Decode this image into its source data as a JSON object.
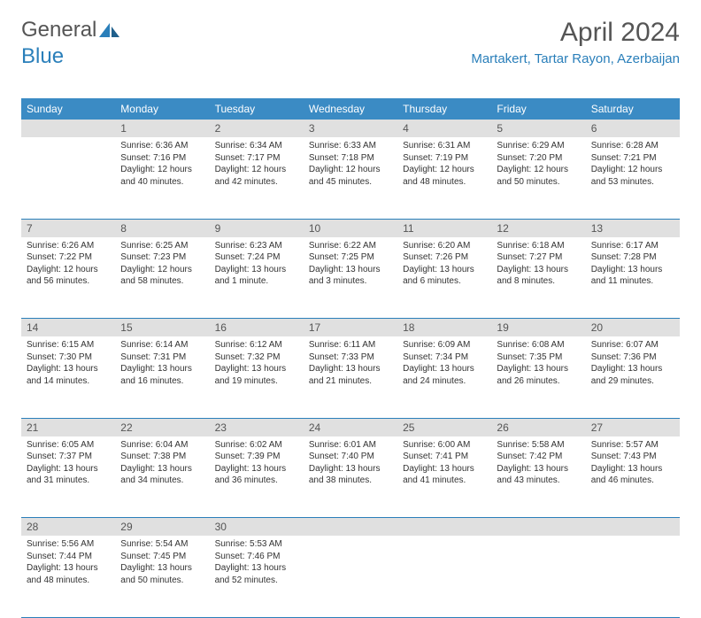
{
  "logo": {
    "text1": "General",
    "text2": "Blue"
  },
  "title": "April 2024",
  "location": "Martakert, Tartar Rayon, Azerbaijan",
  "weekdays": [
    "Sunday",
    "Monday",
    "Tuesday",
    "Wednesday",
    "Thursday",
    "Friday",
    "Saturday"
  ],
  "colors": {
    "header_bg": "#3b8bc4",
    "accent": "#2a7fba",
    "daynum_bg": "#e0e0e0",
    "text": "#333333"
  },
  "weeks": [
    {
      "nums": [
        "",
        "1",
        "2",
        "3",
        "4",
        "5",
        "6"
      ],
      "cells": [
        null,
        {
          "sr": "Sunrise: 6:36 AM",
          "ss": "Sunset: 7:16 PM",
          "d1": "Daylight: 12 hours",
          "d2": "and 40 minutes."
        },
        {
          "sr": "Sunrise: 6:34 AM",
          "ss": "Sunset: 7:17 PM",
          "d1": "Daylight: 12 hours",
          "d2": "and 42 minutes."
        },
        {
          "sr": "Sunrise: 6:33 AM",
          "ss": "Sunset: 7:18 PM",
          "d1": "Daylight: 12 hours",
          "d2": "and 45 minutes."
        },
        {
          "sr": "Sunrise: 6:31 AM",
          "ss": "Sunset: 7:19 PM",
          "d1": "Daylight: 12 hours",
          "d2": "and 48 minutes."
        },
        {
          "sr": "Sunrise: 6:29 AM",
          "ss": "Sunset: 7:20 PM",
          "d1": "Daylight: 12 hours",
          "d2": "and 50 minutes."
        },
        {
          "sr": "Sunrise: 6:28 AM",
          "ss": "Sunset: 7:21 PM",
          "d1": "Daylight: 12 hours",
          "d2": "and 53 minutes."
        }
      ]
    },
    {
      "nums": [
        "7",
        "8",
        "9",
        "10",
        "11",
        "12",
        "13"
      ],
      "cells": [
        {
          "sr": "Sunrise: 6:26 AM",
          "ss": "Sunset: 7:22 PM",
          "d1": "Daylight: 12 hours",
          "d2": "and 56 minutes."
        },
        {
          "sr": "Sunrise: 6:25 AM",
          "ss": "Sunset: 7:23 PM",
          "d1": "Daylight: 12 hours",
          "d2": "and 58 minutes."
        },
        {
          "sr": "Sunrise: 6:23 AM",
          "ss": "Sunset: 7:24 PM",
          "d1": "Daylight: 13 hours",
          "d2": "and 1 minute."
        },
        {
          "sr": "Sunrise: 6:22 AM",
          "ss": "Sunset: 7:25 PM",
          "d1": "Daylight: 13 hours",
          "d2": "and 3 minutes."
        },
        {
          "sr": "Sunrise: 6:20 AM",
          "ss": "Sunset: 7:26 PM",
          "d1": "Daylight: 13 hours",
          "d2": "and 6 minutes."
        },
        {
          "sr": "Sunrise: 6:18 AM",
          "ss": "Sunset: 7:27 PM",
          "d1": "Daylight: 13 hours",
          "d2": "and 8 minutes."
        },
        {
          "sr": "Sunrise: 6:17 AM",
          "ss": "Sunset: 7:28 PM",
          "d1": "Daylight: 13 hours",
          "d2": "and 11 minutes."
        }
      ]
    },
    {
      "nums": [
        "14",
        "15",
        "16",
        "17",
        "18",
        "19",
        "20"
      ],
      "cells": [
        {
          "sr": "Sunrise: 6:15 AM",
          "ss": "Sunset: 7:30 PM",
          "d1": "Daylight: 13 hours",
          "d2": "and 14 minutes."
        },
        {
          "sr": "Sunrise: 6:14 AM",
          "ss": "Sunset: 7:31 PM",
          "d1": "Daylight: 13 hours",
          "d2": "and 16 minutes."
        },
        {
          "sr": "Sunrise: 6:12 AM",
          "ss": "Sunset: 7:32 PM",
          "d1": "Daylight: 13 hours",
          "d2": "and 19 minutes."
        },
        {
          "sr": "Sunrise: 6:11 AM",
          "ss": "Sunset: 7:33 PM",
          "d1": "Daylight: 13 hours",
          "d2": "and 21 minutes."
        },
        {
          "sr": "Sunrise: 6:09 AM",
          "ss": "Sunset: 7:34 PM",
          "d1": "Daylight: 13 hours",
          "d2": "and 24 minutes."
        },
        {
          "sr": "Sunrise: 6:08 AM",
          "ss": "Sunset: 7:35 PM",
          "d1": "Daylight: 13 hours",
          "d2": "and 26 minutes."
        },
        {
          "sr": "Sunrise: 6:07 AM",
          "ss": "Sunset: 7:36 PM",
          "d1": "Daylight: 13 hours",
          "d2": "and 29 minutes."
        }
      ]
    },
    {
      "nums": [
        "21",
        "22",
        "23",
        "24",
        "25",
        "26",
        "27"
      ],
      "cells": [
        {
          "sr": "Sunrise: 6:05 AM",
          "ss": "Sunset: 7:37 PM",
          "d1": "Daylight: 13 hours",
          "d2": "and 31 minutes."
        },
        {
          "sr": "Sunrise: 6:04 AM",
          "ss": "Sunset: 7:38 PM",
          "d1": "Daylight: 13 hours",
          "d2": "and 34 minutes."
        },
        {
          "sr": "Sunrise: 6:02 AM",
          "ss": "Sunset: 7:39 PM",
          "d1": "Daylight: 13 hours",
          "d2": "and 36 minutes."
        },
        {
          "sr": "Sunrise: 6:01 AM",
          "ss": "Sunset: 7:40 PM",
          "d1": "Daylight: 13 hours",
          "d2": "and 38 minutes."
        },
        {
          "sr": "Sunrise: 6:00 AM",
          "ss": "Sunset: 7:41 PM",
          "d1": "Daylight: 13 hours",
          "d2": "and 41 minutes."
        },
        {
          "sr": "Sunrise: 5:58 AM",
          "ss": "Sunset: 7:42 PM",
          "d1": "Daylight: 13 hours",
          "d2": "and 43 minutes."
        },
        {
          "sr": "Sunrise: 5:57 AM",
          "ss": "Sunset: 7:43 PM",
          "d1": "Daylight: 13 hours",
          "d2": "and 46 minutes."
        }
      ]
    },
    {
      "nums": [
        "28",
        "29",
        "30",
        "",
        "",
        "",
        ""
      ],
      "cells": [
        {
          "sr": "Sunrise: 5:56 AM",
          "ss": "Sunset: 7:44 PM",
          "d1": "Daylight: 13 hours",
          "d2": "and 48 minutes."
        },
        {
          "sr": "Sunrise: 5:54 AM",
          "ss": "Sunset: 7:45 PM",
          "d1": "Daylight: 13 hours",
          "d2": "and 50 minutes."
        },
        {
          "sr": "Sunrise: 5:53 AM",
          "ss": "Sunset: 7:46 PM",
          "d1": "Daylight: 13 hours",
          "d2": "and 52 minutes."
        },
        null,
        null,
        null,
        null
      ]
    }
  ]
}
